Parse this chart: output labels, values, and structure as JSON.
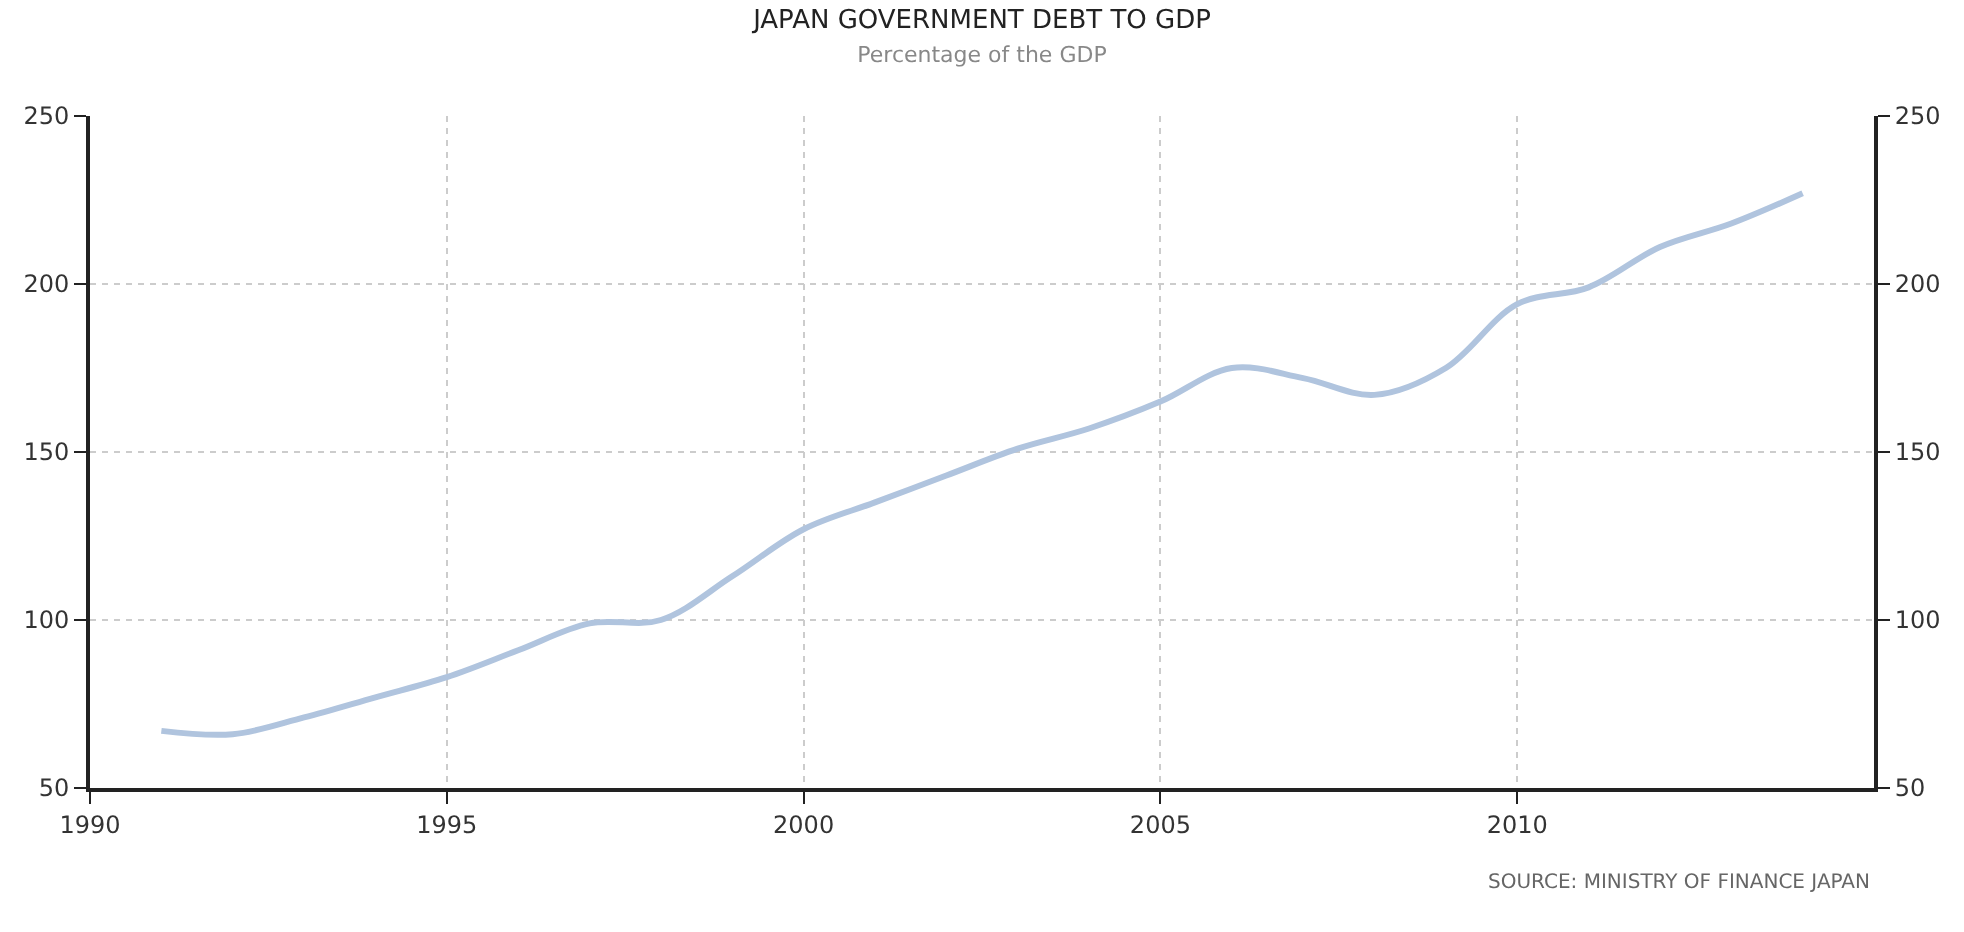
{
  "chart_data": {
    "type": "line",
    "title": "JAPAN GOVERNMENT DEBT TO GDP",
    "subtitle": "Percentage of the GDP",
    "x": [
      1991,
      1992,
      1993,
      1994,
      1995,
      1996,
      1997,
      1998,
      1999,
      2000,
      2001,
      2002,
      2003,
      2004,
      2005,
      2006,
      2007,
      2008,
      2009,
      2010,
      2011,
      2012,
      2013,
      2014
    ],
    "series": [
      {
        "color": "#b0c4de",
        "values": [
          67,
          66,
          71,
          77,
          83,
          91,
          99,
          100,
          113,
          127,
          135,
          143,
          151,
          157,
          165,
          175,
          172,
          167,
          175,
          194,
          199,
          211,
          218,
          227
        ]
      }
    ],
    "xlim": [
      1990,
      2015
    ],
    "xticks": [
      1990,
      1995,
      2000,
      2005,
      2010
    ],
    "ylim": [
      50,
      250
    ],
    "yticks": [
      50,
      100,
      150,
      200,
      250
    ],
    "y2lim": [
      50,
      250
    ],
    "y2ticks": [
      50,
      100,
      150,
      200,
      250
    ],
    "grid": true,
    "annotations": [
      "SOURCE: MINISTRY OF FINANCE JAPAN"
    ]
  }
}
